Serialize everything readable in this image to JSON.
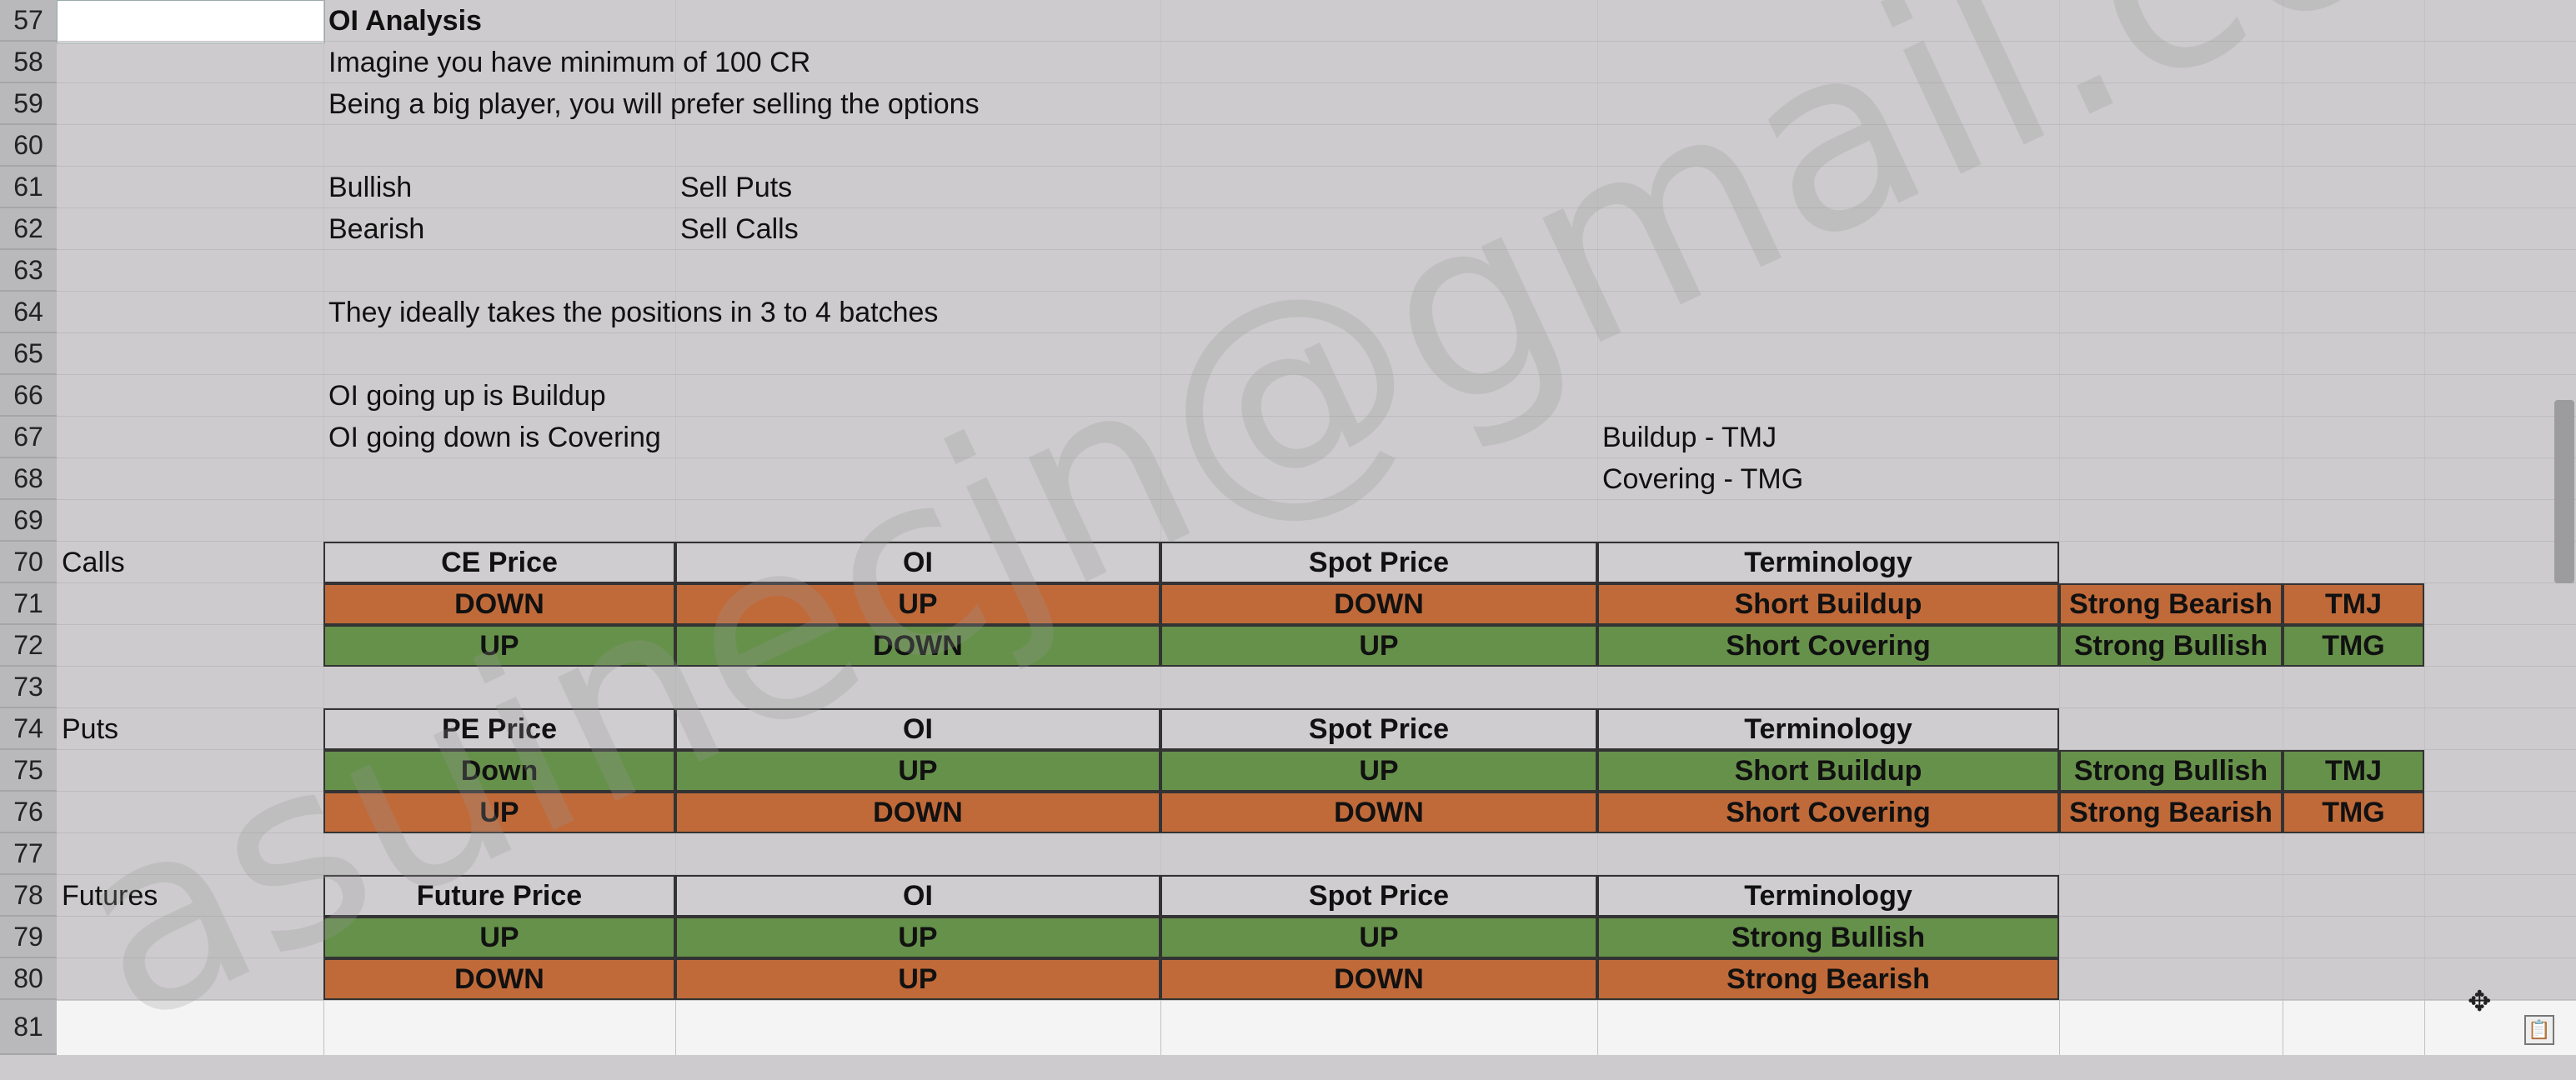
{
  "rows": [
    "57",
    "58",
    "59",
    "60",
    "61",
    "62",
    "63",
    "64",
    "65",
    "66",
    "67",
    "68",
    "69",
    "70",
    "71",
    "72",
    "73",
    "74",
    "75",
    "76",
    "77",
    "78",
    "79",
    "80",
    "81"
  ],
  "notes": {
    "title": "OI Analysis",
    "line1": "Imagine you have minimum of 100 CR",
    "line2": "Being a big player, you will prefer selling the options",
    "bullish": "Bullish",
    "sell_puts": "Sell Puts",
    "bearish": "Bearish",
    "sell_calls": "Sell Calls",
    "batches": "They ideally takes the positions in 3 to 4 batches",
    "oi_up": "OI going up is Buildup",
    "oi_down": "OI going down is Covering",
    "buildup_tmj": "Buildup - TMJ",
    "covering_tmg": "Covering - TMG"
  },
  "calls": {
    "label": "Calls",
    "headers": [
      "CE Price",
      "OI",
      "Spot Price",
      "Terminology"
    ],
    "rows": [
      [
        "DOWN",
        "UP",
        "DOWN",
        "Short Buildup",
        "Strong Bearish",
        "TMJ"
      ],
      [
        "UP",
        "DOWN",
        "UP",
        "Short Covering",
        "Strong Bullish",
        "TMG"
      ]
    ]
  },
  "puts": {
    "label": "Puts",
    "headers": [
      "PE Price",
      "OI",
      "Spot Price",
      "Terminology"
    ],
    "rows": [
      [
        "Down",
        "UP",
        "UP",
        "Short Buildup",
        "Strong Bullish",
        "TMJ"
      ],
      [
        "UP",
        "DOWN",
        "DOWN",
        "Short Covering",
        "Strong Bearish",
        "TMG"
      ]
    ]
  },
  "futures": {
    "label": "Futures",
    "headers": [
      "Future Price",
      "OI",
      "Spot Price",
      "Terminology"
    ],
    "rows": [
      [
        "UP",
        "UP",
        "UP",
        "Strong Bullish"
      ],
      [
        "DOWN",
        "UP",
        "DOWN",
        "Strong Bearish"
      ]
    ]
  },
  "watermark": "asuinecjn@gmail.com",
  "colors": {
    "bearish": "#c06a3a",
    "bullish": "#66914a",
    "background": "#cdcbcd"
  }
}
